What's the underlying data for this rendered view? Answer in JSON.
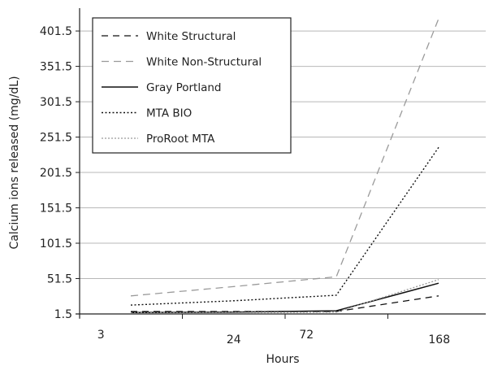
{
  "chart_data": {
    "type": "line",
    "xlabel": "Hours",
    "ylabel": "Calcium ions released (mg/dL)",
    "categories": [
      "3",
      "24",
      "72",
      "168"
    ],
    "ylim": [
      1.5,
      431.5
    ],
    "yticks": [
      1.5,
      51.5,
      101.5,
      151.5,
      201.5,
      251.5,
      301.5,
      351.5,
      401.5
    ],
    "ytick_labels": [
      "1.5",
      "51.5",
      "101.5",
      "151.5",
      "201.5",
      "251.5",
      "301.5",
      "351.5",
      "401.5"
    ],
    "grid": "horizontal",
    "legend_position": "top-left",
    "series": [
      {
        "name": "White Structural",
        "values": [
          5,
          5,
          5,
          27
        ],
        "color": "#111111",
        "dash": "8,6",
        "width": 1.3
      },
      {
        "name": "White Non-Structural",
        "values": [
          27,
          40,
          54,
          419
        ],
        "color": "#9a9a9a",
        "dash": "9,6",
        "width": 1.3
      },
      {
        "name": "Gray Portland",
        "values": [
          3.5,
          4,
          6,
          45
        ],
        "color": "#111111",
        "dash": "",
        "width": 1.5
      },
      {
        "name": "MTA BIO",
        "values": [
          14,
          20,
          28,
          237
        ],
        "color": "#111111",
        "dash": "2,2.5",
        "width": 1.4
      },
      {
        "name": "ProRoot MTA",
        "values": [
          3,
          3.5,
          4,
          50
        ],
        "color": "#9a9a9a",
        "dash": "2,2",
        "width": 1.3
      }
    ]
  }
}
